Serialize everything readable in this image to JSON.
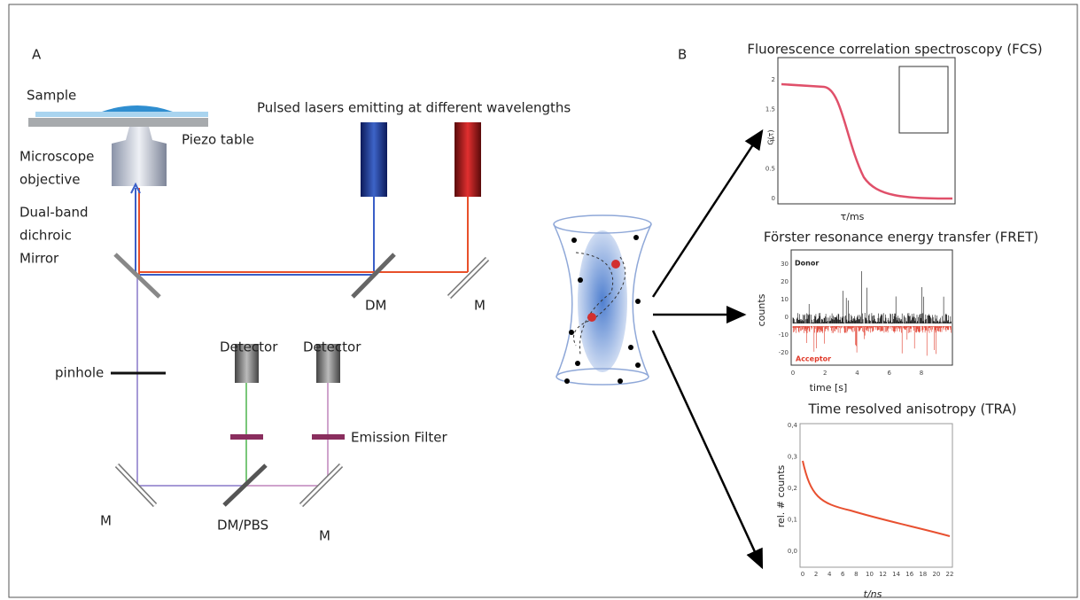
{
  "panel_a": {
    "label": "A",
    "sample": "Sample",
    "piezo_table": "Piezo table",
    "objective": [
      "Microscope",
      "objective"
    ],
    "lasers": "Pulsed lasers emitting at different wavelengths",
    "dichroic": [
      "Dual-band",
      "dichroic",
      "Mirror"
    ],
    "dm": "DM",
    "m_top": "M",
    "pinhole": "pinhole",
    "detector_1": "Detector",
    "detector_2": "Detector",
    "emission_filter": "Emission Filter",
    "m_left": "M",
    "dm_pbs": "DM/PBS",
    "m_right": "M"
  },
  "panel_b": {
    "label": "B",
    "fcs": {
      "title": "Fluorescence correlation spectroscopy (FCS)",
      "y_label": "G(τ)",
      "x_label": "τ/ms",
      "yticks": [
        "2",
        "1.5",
        "1",
        "0.5",
        "0"
      ]
    },
    "fret": {
      "title": "Förster resonance energy transfer (FRET)",
      "y_label": "counts",
      "x_label": "time [s]",
      "donor": "Donor",
      "acceptor": "Acceptor",
      "yticks": [
        "30",
        "20",
        "10",
        "0",
        "-10",
        "-20"
      ],
      "xticks": [
        "0",
        "2",
        "4",
        "6",
        "8"
      ]
    },
    "tra": {
      "title": "Time resolved anisotropy (TRA)",
      "y_label": "rel. # counts",
      "x_label": "t/ns",
      "yticks": [
        "0,4",
        "0,3",
        "0,2",
        "0,1",
        "0,0"
      ],
      "xticks": [
        "0",
        "2",
        "4",
        "6",
        "8",
        "10",
        "12",
        "14",
        "16",
        "18",
        "20",
        "22"
      ]
    }
  }
}
